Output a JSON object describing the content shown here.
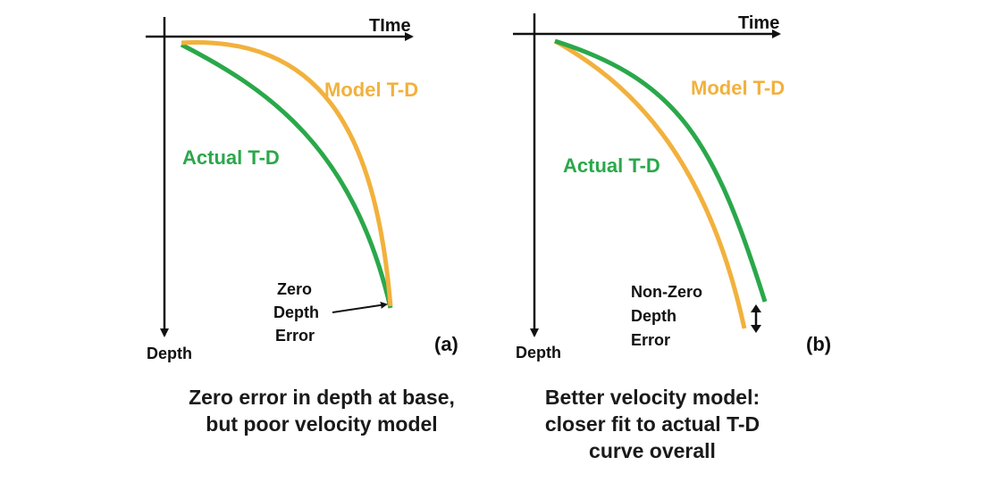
{
  "colors": {
    "actual": "#2aa84a",
    "model": "#f2b13c",
    "axis": "#111111",
    "text": "#111111"
  },
  "panel_a": {
    "time_label": "TIme",
    "depth_label": "Depth",
    "model_label": "Model T-D",
    "actual_label": "Actual T-D",
    "error_lines": [
      "Zero",
      "Depth",
      "Error"
    ],
    "panel_tag": "(a)",
    "caption_lines": [
      "Zero error in depth at base,",
      "but poor velocity model"
    ]
  },
  "panel_b": {
    "time_label": "Time",
    "depth_label": "Depth",
    "model_label": "Model T-D",
    "actual_label": "Actual T-D",
    "error_lines": [
      "Non-Zero",
      "Depth",
      "Error"
    ],
    "panel_tag": "(b)",
    "caption_lines": [
      "Better velocity model:",
      "closer fit to actual T-D",
      "curve overall"
    ]
  }
}
